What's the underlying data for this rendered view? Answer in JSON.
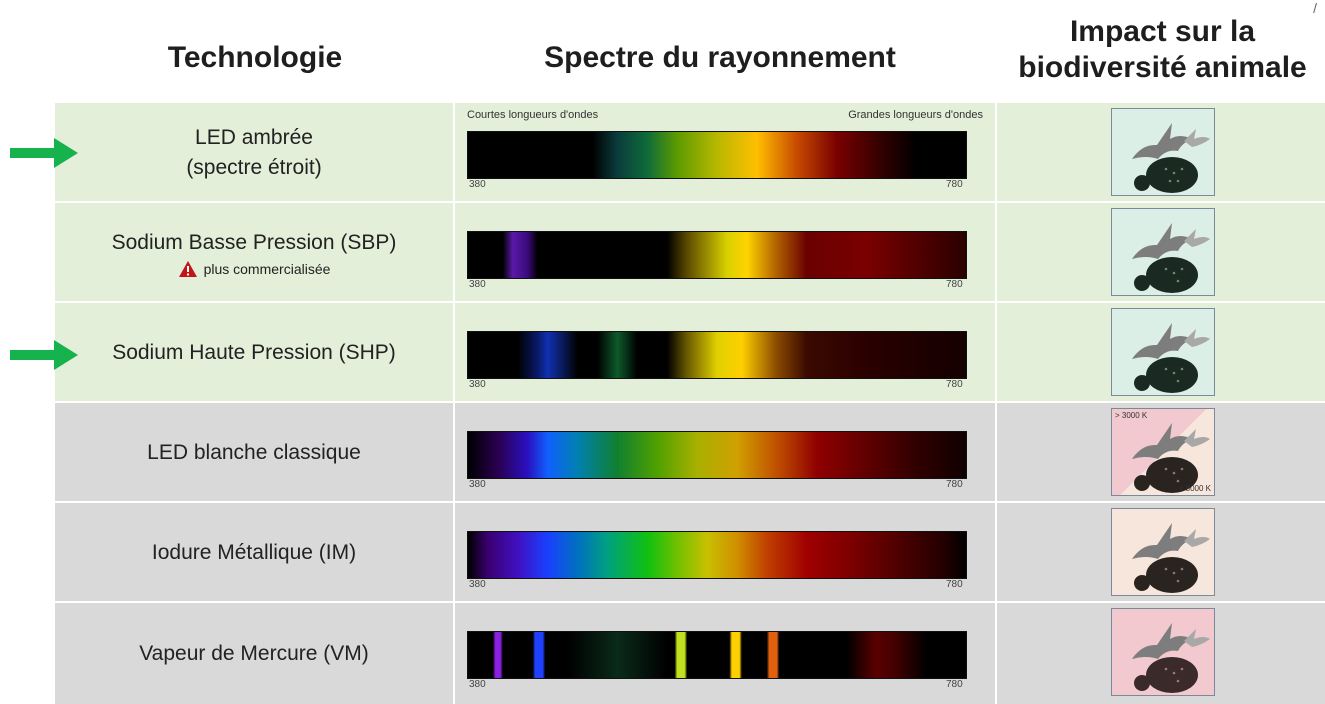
{
  "headers": {
    "technologie": "Technologie",
    "spectre": "Spectre du rayonnement",
    "impact_line1": "Impact sur la",
    "impact_line2": "biodiversité animale"
  },
  "corner_mark": "/",
  "spectrum_legend": {
    "short": "Courtes longueurs d'ondes",
    "long": "Grandes longueurs d'ondes"
  },
  "ticks": {
    "min": "380",
    "max": "780"
  },
  "impact_labels": {
    "high": "> 3000 K",
    "low": "< 3000 K"
  },
  "rows": [
    {
      "name_line1": "LED ambrée",
      "name_line2": "(spectre étroit)",
      "note": "",
      "highlight_arrow": true,
      "group": "green",
      "impact_level": "low"
    },
    {
      "name_line1": "Sodium Basse Pression (SBP)",
      "name_line2": "",
      "note": "plus commercialisée",
      "highlight_arrow": false,
      "group": "green",
      "impact_level": "low"
    },
    {
      "name_line1": "Sodium Haute Pression (SHP)",
      "name_line2": "",
      "note": "",
      "highlight_arrow": true,
      "group": "green",
      "impact_level": "low"
    },
    {
      "name_line1": "LED blanche classique",
      "name_line2": "",
      "note": "",
      "highlight_arrow": false,
      "group": "grey",
      "impact_level": "variable"
    },
    {
      "name_line1": "Iodure Métallique (IM)",
      "name_line2": "",
      "note": "",
      "highlight_arrow": false,
      "group": "grey",
      "impact_level": "medium"
    },
    {
      "name_line1": "Vapeur de Mercure (VM)",
      "name_line2": "",
      "note": "",
      "highlight_arrow": false,
      "group": "grey",
      "impact_level": "high"
    }
  ],
  "colors": {
    "green_row": "#e3efd9",
    "grey_row": "#d9d9d9",
    "arrow": "#16b24e",
    "impact_low": "#dcefe6",
    "impact_medium": "#f7e6dc",
    "impact_high": "#f1c9cf"
  }
}
